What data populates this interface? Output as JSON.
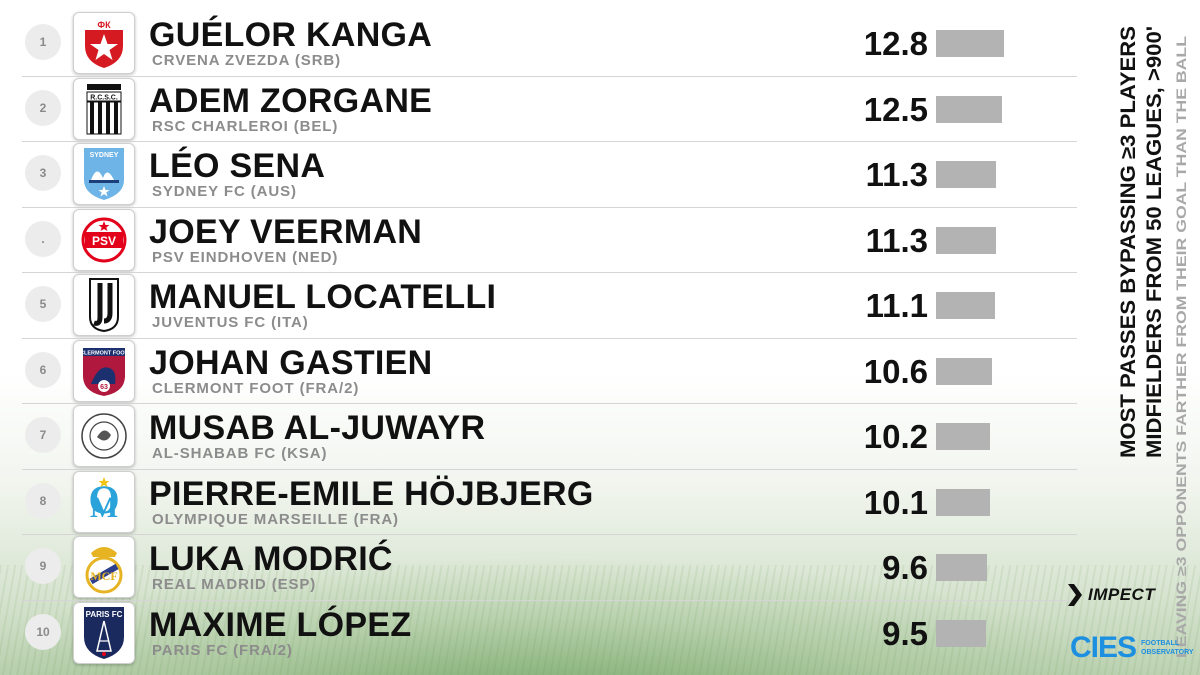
{
  "chart_data": {
    "type": "bar",
    "title": "MOST PASSES BYPASSING ≥3 PLAYERS",
    "subtitle": "MIDFIELDERS FROM 50 LEAGUES, >900'",
    "note": "LEAVING ≥3 OPPONENTS FARTHER FROM THEIR GOAL THAN THE BALL",
    "orientation": "horizontal",
    "xlim": [
      0,
      12.8
    ],
    "rows": [
      {
        "rank": "1",
        "player": "GUÉLOR KANGA",
        "club": "CRVENA ZVEZDA (SRB)",
        "value": 12.8,
        "label": "12.8",
        "badge_icon": "crvena-zvezda-crest-icon"
      },
      {
        "rank": "2",
        "player": "ADEM ZORGANE",
        "club": "RSC CHARLEROI (BEL)",
        "value": 12.5,
        "label": "12.5",
        "badge_icon": "charleroi-crest-icon"
      },
      {
        "rank": "3",
        "player": "LÉO SENA",
        "club": "SYDNEY FC (AUS)",
        "value": 11.3,
        "label": "11.3",
        "badge_icon": "sydney-fc-crest-icon"
      },
      {
        "rank": ".",
        "player": "JOEY VEERMAN",
        "club": "PSV EINDHOVEN (NED)",
        "value": 11.3,
        "label": "11.3",
        "badge_icon": "psv-crest-icon"
      },
      {
        "rank": "5",
        "player": "MANUEL LOCATELLI",
        "club": "JUVENTUS FC (ITA)",
        "value": 11.1,
        "label": "11.1",
        "badge_icon": "juventus-crest-icon"
      },
      {
        "rank": "6",
        "player": "JOHAN GASTIEN",
        "club": "CLERMONT FOOT (FRA/2)",
        "value": 10.6,
        "label": "10.6",
        "badge_icon": "clermont-crest-icon"
      },
      {
        "rank": "7",
        "player": "MUSAB AL-JUWAYR",
        "club": "AL-SHABAB FC (KSA)",
        "value": 10.2,
        "label": "10.2",
        "badge_icon": "al-shabab-crest-icon"
      },
      {
        "rank": "8",
        "player": "PIERRE-EMILE HÖJBJERG",
        "club": "OLYMPIQUE MARSEILLE (FRA)",
        "value": 10.1,
        "label": "10.1",
        "badge_icon": "marseille-crest-icon"
      },
      {
        "rank": "9",
        "player": "LUKA MODRIĆ",
        "club": "REAL MADRID (ESP)",
        "value": 9.6,
        "label": "9.6",
        "badge_icon": "real-madrid-crest-icon"
      },
      {
        "rank": "10",
        "player": "MAXIME LÓPEZ",
        "club": "PARIS FC (FRA/2)",
        "value": 9.5,
        "label": "9.5",
        "badge_icon": "paris-fc-crest-icon"
      }
    ]
  },
  "branding": {
    "impect": "IMPECT",
    "cies": "CIES",
    "cies_line1": "FOOTBALL",
    "cies_line2": "OBSERVATORY"
  },
  "colors": {
    "bar": "#b3b3b3",
    "text": "#111111",
    "club_text": "#8c8c8c",
    "cies_blue": "#1d8fe0"
  }
}
